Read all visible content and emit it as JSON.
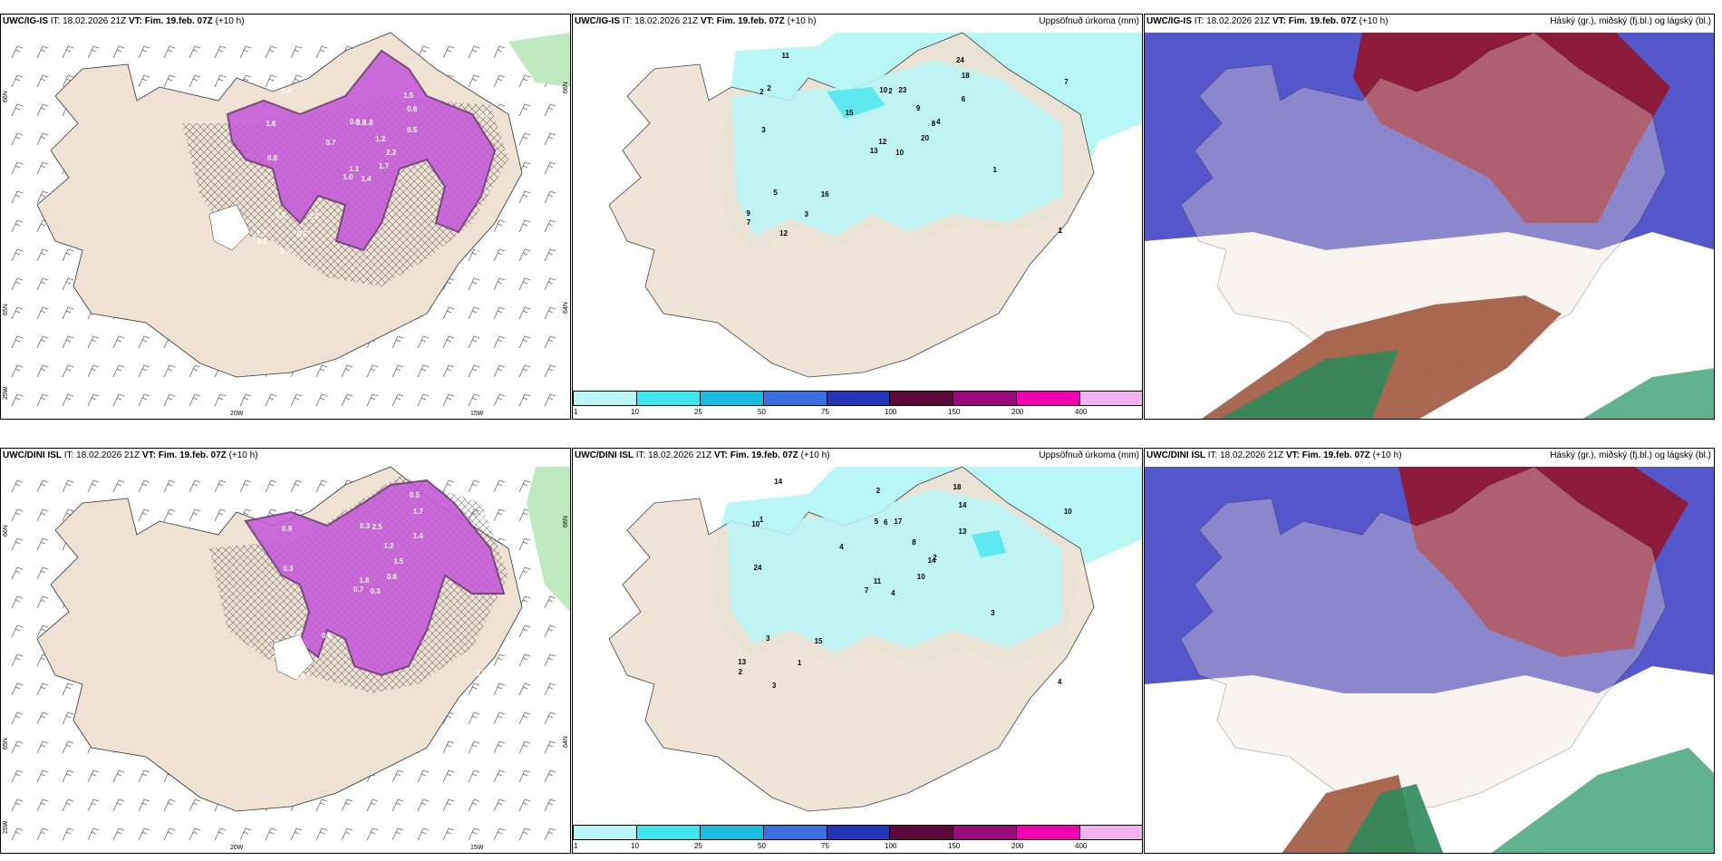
{
  "colors": {
    "land": "#efe2d3",
    "precip_light": "#b9f7f7",
    "precip_mid": "#5ee9f0",
    "snow_purple": "#c65cd9",
    "snow_dark": "#6e3a77",
    "cloud_high": "#8c1a3a",
    "cloud_mid": "#4a4ec7",
    "cloud_low": "#2e8a5a",
    "colorbar": [
      "#b9f7f7",
      "#3de5ef",
      "#19bde0",
      "#3a6fe0",
      "#2436b8",
      "#5c0a3a",
      "#990a7a",
      "#f000b0",
      "#f3b3f0"
    ]
  },
  "rows": [
    {
      "model": "UWC/IG-IS",
      "it_label": "IT:",
      "it_value": "18.02.2026 21Z",
      "vt_label": "VT:",
      "vt_value": "Fim. 19.feb. 07Z",
      "lead": "(+10 h)",
      "precip_title": "Uppsöfnuð úrkoma (mm)",
      "cloud_title": "Háský (gr.), miðský (fj.bl.) og lágský (bl.)",
      "lat_labels": [
        "66N",
        "66N",
        "65N",
        "64N"
      ],
      "lon_labels": [
        "20W",
        "15W"
      ],
      "bottom_left_label": "25W",
      "snow_values": [
        "1.4",
        "1.6",
        "1.1",
        "1.3",
        "2.2",
        "1.2",
        "1.5",
        "1.8",
        "0.6",
        "1.7",
        "0.4",
        "0.9",
        "0.8",
        "0.7",
        "1.0",
        "0.5",
        "0.3",
        "0.6",
        "1.2",
        "0.5",
        "0.7",
        "0.3",
        "0.5",
        "0.6"
      ],
      "precip_values": [
        "10",
        "2",
        "12",
        "9",
        "8",
        "16",
        "24",
        "23",
        "18",
        "20",
        "11",
        "1",
        "3",
        "7",
        "13",
        "6",
        "12",
        "10",
        "9",
        "5",
        "15",
        "7",
        "3",
        "2",
        "4",
        "1",
        "2"
      ]
    },
    {
      "model": "UWC/DINI ISL",
      "it_label": "IT:",
      "it_value": "18.02.2026 21Z",
      "vt_label": "VT:",
      "vt_value": "Fim. 19.feb. 07Z",
      "lead": "(+10 h)",
      "precip_title": "Uppsöfnuð úrkoma (mm)",
      "cloud_title": "Háský (gr.), miðský (fj.bl.) og lágský (bl.)",
      "lat_labels": [
        "66N",
        "66N",
        "65N",
        "64N"
      ],
      "lon_labels": [
        "20W",
        "15W"
      ],
      "bottom_left_label": "25W",
      "snow_values": [
        "0.3",
        "0.9",
        "1.8",
        "2.0",
        "1.5",
        "0.6",
        "0.5",
        "2.5",
        "1.7",
        "0.8",
        "0.4",
        "1.0",
        "0.3",
        "0.6",
        "0.7",
        "1.4",
        "0.5",
        "0.3",
        "1.2",
        "0.8"
      ],
      "precip_values": [
        "4",
        "10",
        "11",
        "13",
        "14",
        "15",
        "18",
        "17",
        "14",
        "10",
        "14",
        "4",
        "24",
        "10",
        "7",
        "13",
        "3",
        "5",
        "8",
        "3",
        "4",
        "2",
        "1",
        "6",
        "2",
        "3",
        "1",
        "2"
      ]
    }
  ],
  "colorbar_ticks": [
    "1",
    "10",
    "25",
    "50",
    "75",
    "100",
    "150",
    "200",
    "400"
  ]
}
